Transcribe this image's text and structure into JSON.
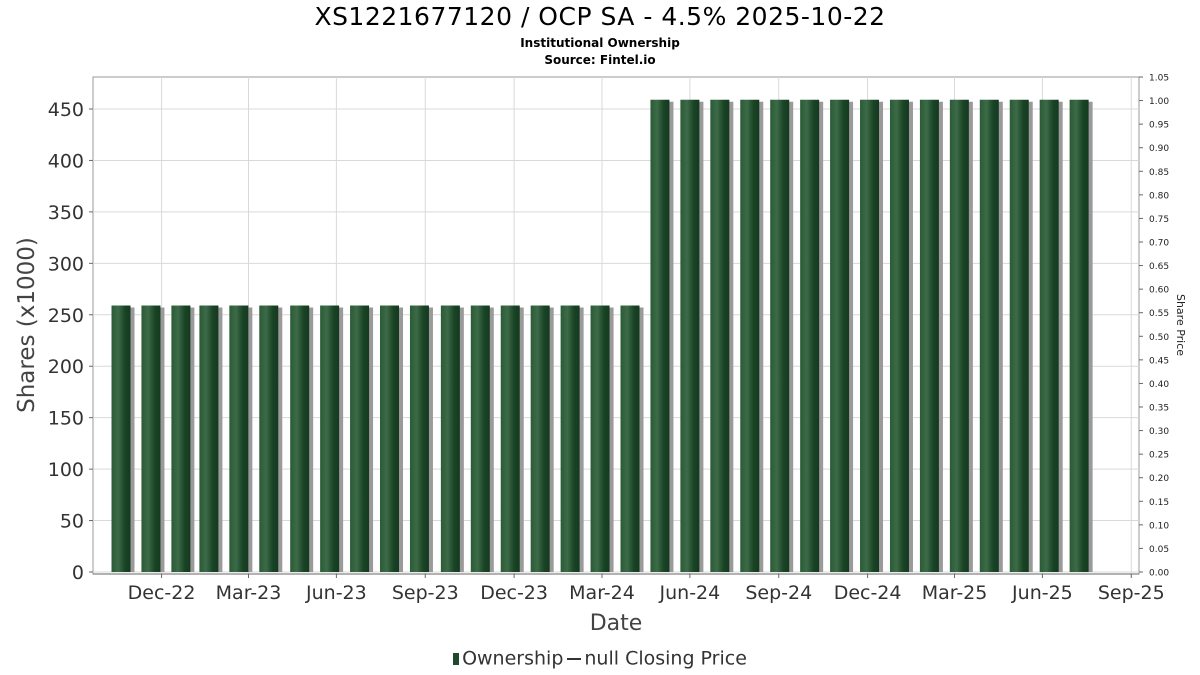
{
  "title": "XS1221677120 / OCP SA - 4.5% 2025-10-22",
  "subtitle": "Institutional Ownership",
  "source": "Source: Fintel.io",
  "legend": {
    "ownership": "Ownership",
    "price": "null Closing Price"
  },
  "colors": {
    "bar": "#1c4a2a",
    "bar_highlight": "#3d6b48",
    "shadow": "#9a9a9a",
    "grid": "#d9d9d9"
  },
  "chart_data": {
    "type": "bar",
    "title": "XS1221677120 / OCP SA - 4.5% 2025-10-22",
    "xlabel": "Date",
    "ylabel": "Shares (x1000)",
    "y2label": "Share Price",
    "ylim": [
      0,
      480
    ],
    "y2lim": [
      0,
      1.05
    ],
    "y_ticks": [
      0,
      50,
      100,
      150,
      200,
      250,
      300,
      350,
      400,
      450
    ],
    "y2_ticks": [
      "0.00",
      "0.05",
      "0.10",
      "0.15",
      "0.20",
      "0.25",
      "0.30",
      "0.35",
      "0.40",
      "0.45",
      "0.50",
      "0.55",
      "0.60",
      "0.65",
      "0.70",
      "0.75",
      "0.80",
      "0.85",
      "0.90",
      "0.95",
      "1.00",
      "1.05"
    ],
    "x_ticks": [
      "Dec-22",
      "Mar-23",
      "Jun-23",
      "Sep-23",
      "Dec-23",
      "Mar-24",
      "Jun-24",
      "Sep-24",
      "Dec-24",
      "Mar-25",
      "Jun-25",
      "Sep-25"
    ],
    "x_range": [
      "2022-10-21",
      "2025-10-08"
    ],
    "grid": true,
    "legend_position": "bottom",
    "series": [
      {
        "name": "Ownership",
        "points": [
          {
            "date": "2022-11-19",
            "value": 259
          },
          {
            "date": "2022-12-20",
            "value": 259
          },
          {
            "date": "2023-01-20",
            "value": 259
          },
          {
            "date": "2023-02-18",
            "value": 259
          },
          {
            "date": "2023-03-21",
            "value": 259
          },
          {
            "date": "2023-04-21",
            "value": 259
          },
          {
            "date": "2023-05-23",
            "value": 259
          },
          {
            "date": "2023-06-23",
            "value": 259
          },
          {
            "date": "2023-07-24",
            "value": 259
          },
          {
            "date": "2023-08-24",
            "value": 259
          },
          {
            "date": "2023-09-24",
            "value": 259
          },
          {
            "date": "2023-10-26",
            "value": 259
          },
          {
            "date": "2023-11-26",
            "value": 259
          },
          {
            "date": "2023-12-27",
            "value": 259
          },
          {
            "date": "2024-01-27",
            "value": 259
          },
          {
            "date": "2024-02-27",
            "value": 259
          },
          {
            "date": "2024-03-29",
            "value": 259
          },
          {
            "date": "2024-04-29",
            "value": 259
          },
          {
            "date": "2024-05-30",
            "value": 459
          },
          {
            "date": "2024-06-30",
            "value": 459
          },
          {
            "date": "2024-07-31",
            "value": 459
          },
          {
            "date": "2024-08-31",
            "value": 459
          },
          {
            "date": "2024-10-01",
            "value": 459
          },
          {
            "date": "2024-11-01",
            "value": 459
          },
          {
            "date": "2024-12-02",
            "value": 459
          },
          {
            "date": "2025-01-02",
            "value": 459
          },
          {
            "date": "2025-02-02",
            "value": 459
          },
          {
            "date": "2025-03-05",
            "value": 459
          },
          {
            "date": "2025-04-05",
            "value": 459
          },
          {
            "date": "2025-05-06",
            "value": 459
          },
          {
            "date": "2025-06-06",
            "value": 459
          },
          {
            "date": "2025-07-07",
            "value": 459
          },
          {
            "date": "2025-08-07",
            "value": 459
          }
        ]
      }
    ]
  }
}
